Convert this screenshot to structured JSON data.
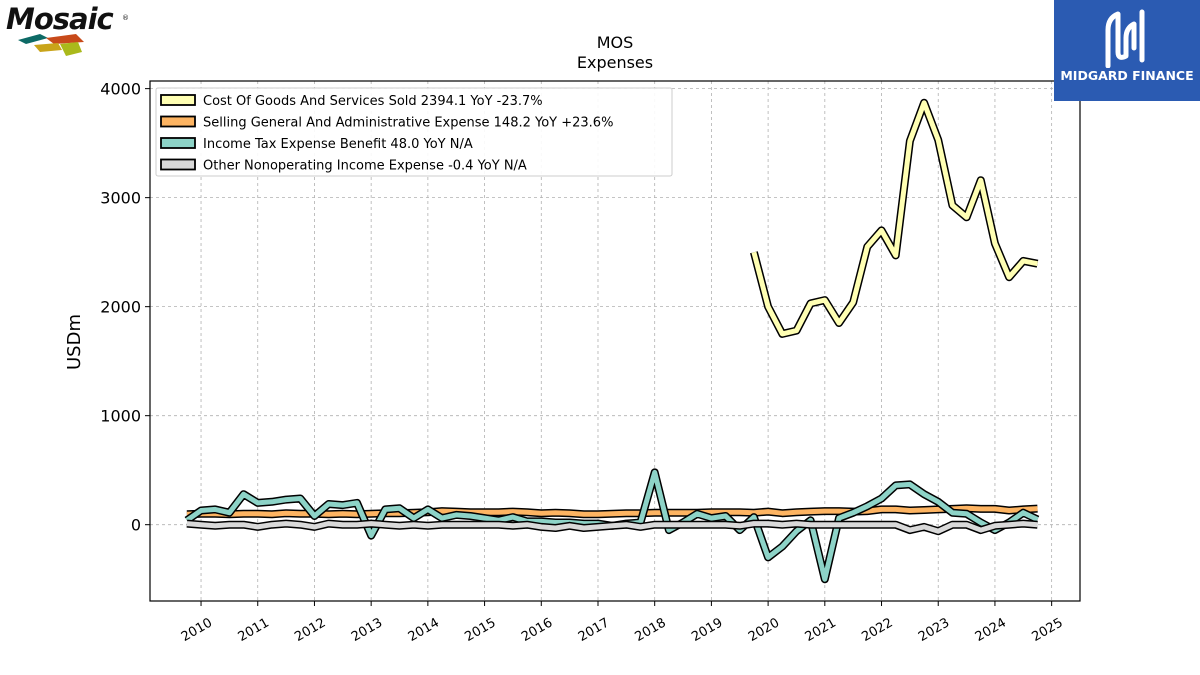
{
  "chart_data": {
    "type": "line",
    "title": "MOS",
    "subtitle": "Expenses",
    "ylabel": "USDm",
    "xlabel": "",
    "ylim": [
      -700,
      4070
    ],
    "xlim": [
      2009.1,
      2025.5
    ],
    "yticks": [
      0,
      1000,
      2000,
      3000,
      4000
    ],
    "xticks": [
      "2010",
      "2011",
      "2012",
      "2013",
      "2014",
      "2015",
      "2016",
      "2017",
      "2018",
      "2019",
      "2020",
      "2021",
      "2022",
      "2023",
      "2024",
      "2025"
    ],
    "grid": true,
    "legend_position": "upper-left",
    "series": [
      {
        "name": "Cost Of Goods And Services Sold  2394.1 YoY -23.7%",
        "color": "#ffffb3",
        "x": [
          2019.75,
          2020.0,
          2020.25,
          2020.5,
          2020.75,
          2021.0,
          2021.25,
          2021.5,
          2021.75,
          2022.0,
          2022.25,
          2022.5,
          2022.75,
          2023.0,
          2023.25,
          2023.5,
          2023.75,
          2024.0,
          2024.25,
          2024.5,
          2024.75
        ],
        "y": [
          2500,
          2000,
          1750,
          1780,
          2030,
          2060,
          1850,
          2040,
          2550,
          2700,
          2470,
          3520,
          3870,
          3530,
          2930,
          2820,
          3160,
          2580,
          2270,
          2420,
          2394
        ]
      },
      {
        "name": "Selling General And Administrative Expense  148.2 YoY +23.6%",
        "color": "#fdb462",
        "x": [
          2009.75,
          2010.0,
          2010.25,
          2010.5,
          2010.75,
          2011.0,
          2011.25,
          2011.5,
          2011.75,
          2012.0,
          2012.25,
          2012.5,
          2012.75,
          2013.0,
          2013.25,
          2013.5,
          2013.75,
          2014.0,
          2014.25,
          2014.5,
          2014.75,
          2015.0,
          2015.25,
          2015.5,
          2015.75,
          2016.0,
          2016.25,
          2016.5,
          2016.75,
          2017.0,
          2017.25,
          2017.5,
          2017.75,
          2018.0,
          2018.25,
          2018.5,
          2018.75,
          2019.0,
          2019.25,
          2019.5,
          2019.75,
          2020.0,
          2020.25,
          2020.5,
          2020.75,
          2021.0,
          2021.25,
          2021.5,
          2021.75,
          2022.0,
          2022.25,
          2022.5,
          2022.75,
          2023.0,
          2023.25,
          2023.5,
          2023.75,
          2024.0,
          2024.25,
          2024.5,
          2024.75
        ],
        "y": [
          95,
          100,
          100,
          95,
          100,
          100,
          95,
          105,
          100,
          100,
          95,
          100,
          95,
          100,
          105,
          105,
          110,
          115,
          125,
          120,
          115,
          115,
          115,
          120,
          115,
          105,
          110,
          105,
          95,
          95,
          100,
          105,
          105,
          110,
          110,
          110,
          110,
          115,
          115,
          115,
          110,
          120,
          105,
          115,
          120,
          125,
          125,
          120,
          125,
          140,
          140,
          130,
          135,
          140,
          145,
          150,
          145,
          145,
          130,
          140,
          148
        ]
      },
      {
        "name": "Income Tax Expense Benefit  48.0 YoY N/A",
        "color": "#8dd3c7",
        "x": [
          2009.75,
          2010.0,
          2010.25,
          2010.5,
          2010.75,
          2011.0,
          2011.25,
          2011.5,
          2011.75,
          2012.0,
          2012.25,
          2012.5,
          2012.75,
          2013.0,
          2013.25,
          2013.5,
          2013.75,
          2014.0,
          2014.25,
          2014.5,
          2014.75,
          2015.0,
          2015.25,
          2015.5,
          2015.75,
          2016.0,
          2016.25,
          2016.5,
          2016.75,
          2017.0,
          2017.25,
          2017.5,
          2017.75,
          2018.0,
          2018.25,
          2018.5,
          2018.75,
          2019.0,
          2019.25,
          2019.5,
          2019.75,
          2020.0,
          2020.25,
          2020.5,
          2020.75,
          2021.0,
          2021.25,
          2021.5,
          2021.75,
          2022.0,
          2022.25,
          2022.5,
          2022.75,
          2023.0,
          2023.25,
          2023.5,
          2023.75,
          2024.0,
          2024.25,
          2024.5,
          2024.75
        ],
        "y": [
          40,
          130,
          140,
          110,
          280,
          200,
          210,
          230,
          240,
          80,
          190,
          180,
          200,
          -100,
          140,
          150,
          60,
          140,
          60,
          90,
          80,
          60,
          40,
          70,
          30,
          30,
          20,
          20,
          10,
          10,
          -10,
          10,
          20,
          480,
          -50,
          20,
          100,
          60,
          80,
          -50,
          70,
          -300,
          -200,
          -60,
          40,
          -500,
          60,
          110,
          170,
          240,
          360,
          370,
          280,
          210,
          110,
          100,
          20,
          -50,
          20,
          110,
          48
        ]
      },
      {
        "name": "Other Nonoperating Income Expense  -0.4 YoY N/A",
        "color": "#d9d9d9",
        "x": [
          2009.75,
          2010.0,
          2010.25,
          2010.5,
          2010.75,
          2011.0,
          2011.25,
          2011.5,
          2011.75,
          2012.0,
          2012.25,
          2012.5,
          2012.75,
          2013.0,
          2013.25,
          2013.5,
          2013.75,
          2014.0,
          2014.25,
          2014.5,
          2014.75,
          2015.0,
          2015.25,
          2015.5,
          2015.75,
          2016.0,
          2016.25,
          2016.5,
          2016.75,
          2017.0,
          2017.25,
          2017.5,
          2017.75,
          2018.0,
          2018.25,
          2018.5,
          2018.75,
          2019.0,
          2019.25,
          2019.5,
          2019.75,
          2020.0,
          2020.25,
          2020.5,
          2020.75,
          2021.0,
          2021.25,
          2021.5,
          2021.75,
          2022.0,
          2022.25,
          2022.5,
          2022.75,
          2023.0,
          2023.25,
          2023.5,
          2023.75,
          2024.0,
          2024.25,
          2024.5,
          2024.75
        ],
        "y": [
          10,
          0,
          -10,
          0,
          0,
          -20,
          0,
          10,
          0,
          -20,
          10,
          0,
          0,
          10,
          0,
          -10,
          0,
          -10,
          0,
          0,
          0,
          0,
          0,
          -10,
          0,
          -20,
          -30,
          -10,
          -30,
          -20,
          -10,
          0,
          -20,
          0,
          0,
          0,
          0,
          0,
          0,
          -10,
          10,
          10,
          0,
          10,
          0,
          0,
          0,
          0,
          0,
          0,
          0,
          -50,
          -20,
          -60,
          0,
          0,
          -50,
          -10,
          0,
          10,
          -0.4
        ]
      }
    ]
  },
  "logos": {
    "left": {
      "text": "Mosaic",
      "mark": "®",
      "colors": [
        "#0d6a66",
        "#c84a1a",
        "#c9a41a",
        "#aab91b"
      ]
    },
    "right": {
      "text": "MIDGARD FINANCE",
      "background": "#2b5bb2"
    }
  }
}
